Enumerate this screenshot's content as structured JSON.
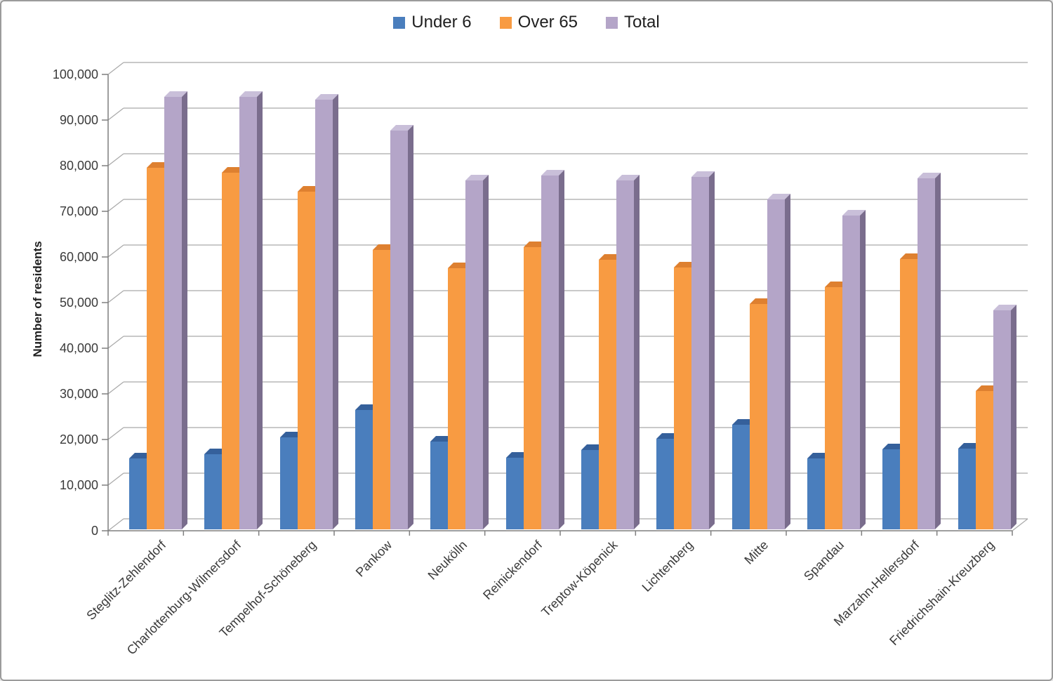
{
  "window": {
    "background": "#ffffff",
    "border_color": "#9b9b9b"
  },
  "chart_data": {
    "type": "bar",
    "style": "3d-clustered-column",
    "title": "",
    "xlabel": "",
    "ylabel": "Number of residents",
    "ylim": [
      0,
      100000
    ],
    "ytick_interval": 10000,
    "ytick_values": [
      0,
      10000,
      20000,
      30000,
      40000,
      50000,
      60000,
      70000,
      80000,
      90000,
      100000
    ],
    "ytick_labels": [
      "0",
      "10,000",
      "20,000",
      "30,000",
      "40,000",
      "50,000",
      "60,000",
      "70,000",
      "80,000",
      "90,000",
      "100,000"
    ],
    "grid": true,
    "legend_position": "top-center",
    "categories": [
      "Steglitz-Zehlendorf",
      "Charlottenburg-Wilmersdorf",
      "Tempelhof-Schöneberg",
      "Pankow",
      "Neukölln",
      "Reinickendorf",
      "Treptow-Köpenick",
      "Lichtenberg",
      "Mitte",
      "Spandau",
      "Marzahn-Hellersdorf",
      "Friedrichshain-Kreuzberg"
    ],
    "series": [
      {
        "name": "Under 6",
        "color": "#4A7EBD",
        "values": [
          15500,
          16500,
          20200,
          26100,
          19300,
          15700,
          17400,
          19900,
          22900,
          15600,
          17600,
          17700
        ]
      },
      {
        "name": "Over 65",
        "color": "#F89B42",
        "values": [
          79300,
          78200,
          74000,
          61300,
          57200,
          61800,
          59000,
          57400,
          49400,
          53100,
          59300,
          30300
        ]
      },
      {
        "name": "Total",
        "color": "#B4A5C8",
        "values": [
          94800,
          94700,
          94200,
          87400,
          76500,
          77500,
          76400,
          77300,
          72300,
          68700,
          76900,
          48000
        ]
      }
    ],
    "axis_colors": {
      "gridline": "#A9A9A9",
      "axis_line": "#7F7F7F",
      "text": "#3a3a3a"
    }
  }
}
